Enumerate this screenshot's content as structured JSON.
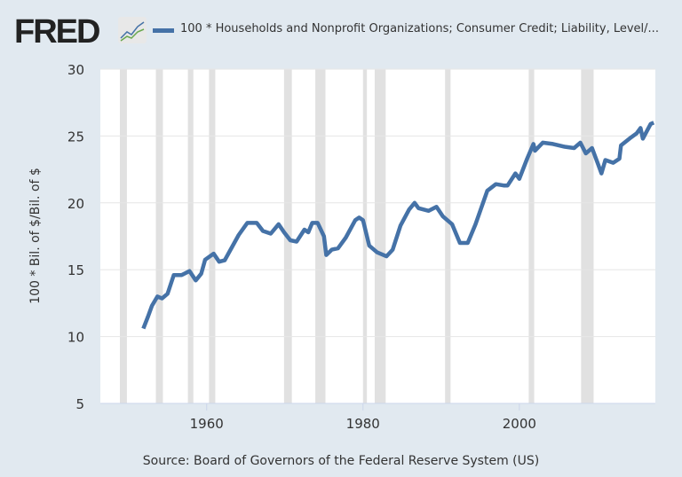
{
  "header": {
    "logo_text": "FRED",
    "legend_label": "100 * Households and Nonprofit Organizations; Consumer Credit; Liability, Level/..."
  },
  "source": "Source: Board of Governors of the Federal Reserve System (US)",
  "colors": {
    "background": "#e1e9f0",
    "line": "#4572a7",
    "recession": "#e1e1e1",
    "grid": "#e6e6e6"
  },
  "chart_data": {
    "type": "line",
    "title": "",
    "xlabel": "",
    "ylabel": "100 * Bil. of $/Bil. of $",
    "xlim": [
      1946.4,
      2017.4
    ],
    "ylim": [
      5,
      30
    ],
    "x_ticks": [
      1960,
      1980,
      2000
    ],
    "y_ticks": [
      5,
      10,
      15,
      20,
      25,
      30
    ],
    "grid": "horizontal",
    "legend": "top",
    "recessions": [
      [
        1948.9,
        1949.8
      ],
      [
        1953.5,
        1954.4
      ],
      [
        1957.6,
        1958.3
      ],
      [
        1960.3,
        1961.1
      ],
      [
        1969.9,
        1970.9
      ],
      [
        1973.9,
        1975.2
      ],
      [
        1980.0,
        1980.5
      ],
      [
        1981.5,
        1982.9
      ],
      [
        1990.5,
        1991.2
      ],
      [
        2001.2,
        2001.9
      ],
      [
        2007.9,
        2009.5
      ]
    ],
    "series": [
      {
        "name": "100 * Households and Nonprofit Organizations; Consumer Credit; Liability, Level/...",
        "x": [
          1951.9,
          1952.5,
          1953.0,
          1953.7,
          1954.3,
          1955.0,
          1955.8,
          1956.8,
          1957.8,
          1958.6,
          1959.3,
          1959.8,
          1960.9,
          1961.6,
          1962.3,
          1964.1,
          1965.2,
          1966.4,
          1967.2,
          1968.2,
          1969.2,
          1969.9,
          1970.7,
          1971.5,
          1972.5,
          1973.0,
          1973.5,
          1974.2,
          1975.0,
          1975.3,
          1976.0,
          1976.8,
          1977.8,
          1979.0,
          1979.5,
          1980.0,
          1980.8,
          1981.8,
          1983.0,
          1983.8,
          1984.8,
          1985.9,
          1986.6,
          1987.1,
          1988.4,
          1989.4,
          1990.2,
          1991.4,
          1992.4,
          1993.4,
          1994.4,
          1995.9,
          1997.0,
          1998.0,
          1998.5,
          1999.5,
          2000.0,
          2001.0,
          2001.8,
          2002.0,
          2003.0,
          2004.3,
          2005.8,
          2007.0,
          2007.8,
          2008.5,
          2009.3,
          2010.0,
          2010.5,
          2011.0,
          2012.0,
          2012.8,
          2013.0,
          2014.3,
          2015.0,
          2015.5,
          2015.8,
          2016.8,
          2017.2
        ],
        "y": [
          10.6,
          11.5,
          12.3,
          13.0,
          12.85,
          13.2,
          14.6,
          14.6,
          14.9,
          14.2,
          14.7,
          15.75,
          16.2,
          15.6,
          15.7,
          17.6,
          18.5,
          18.5,
          17.9,
          17.7,
          18.4,
          17.8,
          17.2,
          17.1,
          18.0,
          17.8,
          18.5,
          18.5,
          17.5,
          16.1,
          16.5,
          16.6,
          17.4,
          18.7,
          18.9,
          18.7,
          16.8,
          16.3,
          16.0,
          16.5,
          18.3,
          19.5,
          20.0,
          19.6,
          19.4,
          19.7,
          19.0,
          18.4,
          17.0,
          17.0,
          18.4,
          20.9,
          21.4,
          21.3,
          21.3,
          22.2,
          21.8,
          23.3,
          24.4,
          23.9,
          24.5,
          24.4,
          24.2,
          24.1,
          24.5,
          23.7,
          24.1,
          23.0,
          22.2,
          23.2,
          23.0,
          23.3,
          24.3,
          24.9,
          25.2,
          25.6,
          24.8,
          25.9,
          26.0
        ]
      }
    ]
  }
}
